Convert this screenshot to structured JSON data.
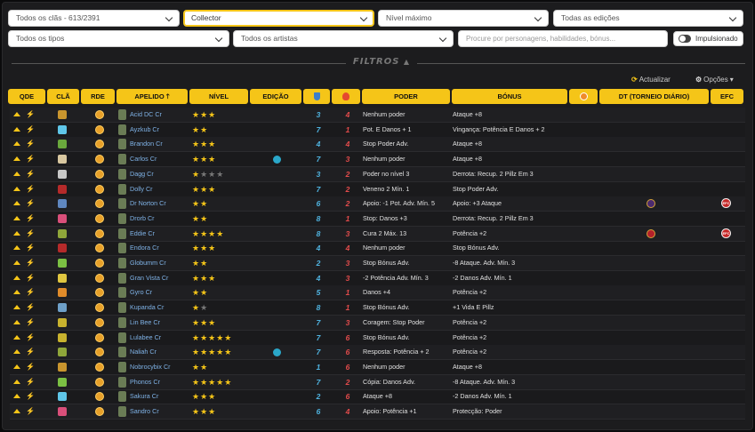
{
  "filters": {
    "clans": "Todos os clãs - 613/2391",
    "collection": "Collector",
    "level": "Nível máximo",
    "editions": "Todas as edições",
    "types": "Todos os tipos",
    "artists": "Todos os artistas",
    "search_placeholder": "Procure por personagens, habilidades, bónus...",
    "boost_label": "Impulsionado"
  },
  "filtros_label": "FILTROS",
  "actions": {
    "refresh": "Actualizar",
    "options": "Opções"
  },
  "columns": {
    "qde": "QDE",
    "clan": "CLÃ",
    "rde": "RDE",
    "name": "APELIDO",
    "level": "NÍVEL",
    "edition": "EDIÇÃO",
    "power": "PODER",
    "bonus": "BÓNUS",
    "dt": "DT (TORNEIO DIÁRIO)",
    "efc": "EFC"
  },
  "clan_colors": {
    "montana": "#c9952e",
    "frozn": "#5fc6e8",
    "ulu": "#6aa83d",
    "fang": "#d8c7a0",
    "nightmare": "#c8c8c8",
    "piranha": "#b52a2a",
    "gheist": "#5f87c0",
    "sakrohm": "#d94f7a",
    "junkz": "#8fa63a",
    "roots": "#d15a2f",
    "uppers": "#7bc043",
    "rescue": "#e0c640",
    "skeelz": "#e08b2a",
    "vortex": "#6ea0c8",
    "allstars": "#c8b22e"
  },
  "rows": [
    {
      "name": "Acid DC Cr",
      "clan": "montana",
      "stars": 3,
      "max": 3,
      "pw": "3",
      "dm": "4",
      "power": "Nenhum poder",
      "bonus": "Ataque +8",
      "edition": false,
      "dt": false,
      "efc": false
    },
    {
      "name": "Ayzkub Cr",
      "clan": "frozn",
      "stars": 2,
      "max": 2,
      "pw": "7",
      "dm": "1",
      "power": "Pot. E Danos + 1",
      "bonus": "Vingança: Potência E Danos + 2",
      "edition": false,
      "dt": false,
      "efc": false
    },
    {
      "name": "Brandon Cr",
      "clan": "ulu",
      "stars": 3,
      "max": 3,
      "pw": "4",
      "dm": "4",
      "power": "Stop Poder Adv.",
      "bonus": "Ataque +8",
      "edition": false,
      "dt": false,
      "efc": false
    },
    {
      "name": "Carlos Cr",
      "clan": "fang",
      "stars": 3,
      "max": 3,
      "pw": "7",
      "dm": "3",
      "power": "Nenhum poder",
      "bonus": "Ataque +8",
      "edition": true,
      "dt": false,
      "efc": false
    },
    {
      "name": "Dagg Cr",
      "clan": "nightmare",
      "stars": 1,
      "max": 4,
      "pw": "3",
      "dm": "2",
      "power": "Poder no nível 3",
      "bonus": "Derrota: Recup. 2 Pillz Em 3",
      "edition": false,
      "dt": false,
      "efc": false
    },
    {
      "name": "Dolly Cr",
      "clan": "piranha",
      "stars": 3,
      "max": 3,
      "pw": "7",
      "dm": "2",
      "power": "Veneno 2 Mín. 1",
      "bonus": "Stop Poder Adv.",
      "edition": false,
      "dt": false,
      "efc": false
    },
    {
      "name": "Dr Norton Cr",
      "clan": "gheist",
      "stars": 2,
      "max": 2,
      "pw": "6",
      "dm": "2",
      "power": "Apoio: -1 Pot. Adv. Mín. 5",
      "bonus": "Apoio: +3 Ataque",
      "edition": false,
      "dt": true,
      "efc": true
    },
    {
      "name": "Drorb Cr",
      "clan": "sakrohm",
      "stars": 2,
      "max": 2,
      "pw": "8",
      "dm": "1",
      "power": "Stop: Danos +3",
      "bonus": "Derrota: Recup. 2 Pillz Em 3",
      "edition": false,
      "dt": false,
      "efc": false
    },
    {
      "name": "Eddie Cr",
      "clan": "junkz",
      "stars": 4,
      "max": 4,
      "pw": "8",
      "dm": "3",
      "power": "Cura 2 Máx. 13",
      "bonus": "Potência +2",
      "edition": false,
      "dt": true,
      "efc": true
    },
    {
      "name": "Endora Cr",
      "clan": "piranha",
      "stars": 3,
      "max": 3,
      "pw": "4",
      "dm": "4",
      "power": "Nenhum poder",
      "bonus": "Stop Bónus Adv.",
      "edition": false,
      "dt": false,
      "efc": false
    },
    {
      "name": "Globumm Cr",
      "clan": "uppers",
      "stars": 2,
      "max": 2,
      "pw": "2",
      "dm": "3",
      "power": "Stop Bónus Adv.",
      "bonus": "-8 Ataque. Adv. Mín. 3",
      "edition": false,
      "dt": false,
      "efc": false
    },
    {
      "name": "Gran Vista Cr",
      "clan": "rescue",
      "stars": 3,
      "max": 3,
      "pw": "4",
      "dm": "3",
      "power": "-2 Potência Adv. Mín. 3",
      "bonus": "-2 Danos Adv. Mín. 1",
      "edition": false,
      "dt": false,
      "efc": false
    },
    {
      "name": "Gyro Cr",
      "clan": "skeelz",
      "stars": 2,
      "max": 2,
      "pw": "5",
      "dm": "1",
      "power": "Danos +4",
      "bonus": "Potência +2",
      "edition": false,
      "dt": false,
      "efc": false
    },
    {
      "name": "Kupanda Cr",
      "clan": "vortex",
      "stars": 1,
      "max": 2,
      "pw": "8",
      "dm": "1",
      "power": "Stop Bónus Adv.",
      "bonus": "+1 Vida E Pillz",
      "edition": false,
      "dt": false,
      "efc": false
    },
    {
      "name": "Lin Bee Cr",
      "clan": "allstars",
      "stars": 3,
      "max": 3,
      "pw": "7",
      "dm": "3",
      "power": "Coragem: Stop Poder",
      "bonus": "Potência +2",
      "edition": false,
      "dt": false,
      "efc": false
    },
    {
      "name": "Lulabee Cr",
      "clan": "allstars",
      "stars": 5,
      "max": 5,
      "pw": "7",
      "dm": "6",
      "power": "Stop Bónus Adv.",
      "bonus": "Potência +2",
      "edition": false,
      "dt": false,
      "efc": false
    },
    {
      "name": "Naliah Cr",
      "clan": "junkz",
      "stars": 5,
      "max": 5,
      "pw": "7",
      "dm": "6",
      "power": "Resposta: Potência + 2",
      "bonus": "Potência +2",
      "edition": true,
      "dt": false,
      "efc": false
    },
    {
      "name": "Nobrocybix Cr",
      "clan": "montana",
      "stars": 2,
      "max": 2,
      "pw": "1",
      "dm": "6",
      "power": "Nenhum poder",
      "bonus": "Ataque +8",
      "edition": false,
      "dt": false,
      "efc": false
    },
    {
      "name": "Phonos Cr",
      "clan": "uppers",
      "stars": 5,
      "max": 5,
      "pw": "7",
      "dm": "2",
      "power": "Cópia: Danos Adv.",
      "bonus": "-8 Ataque. Adv. Mín. 3",
      "edition": false,
      "dt": false,
      "efc": false
    },
    {
      "name": "Sakura Cr",
      "clan": "frozn",
      "stars": 3,
      "max": 3,
      "pw": "2",
      "dm": "6",
      "power": "Ataque +8",
      "bonus": "-2 Danos Adv. Mín. 1",
      "edition": false,
      "dt": false,
      "efc": false
    },
    {
      "name": "Sandro Cr",
      "clan": "sakrohm",
      "stars": 3,
      "max": 3,
      "pw": "6",
      "dm": "4",
      "power": "Apoio: Potência +1",
      "bonus": "Protecção: Poder",
      "edition": false,
      "dt": false,
      "efc": false
    }
  ]
}
